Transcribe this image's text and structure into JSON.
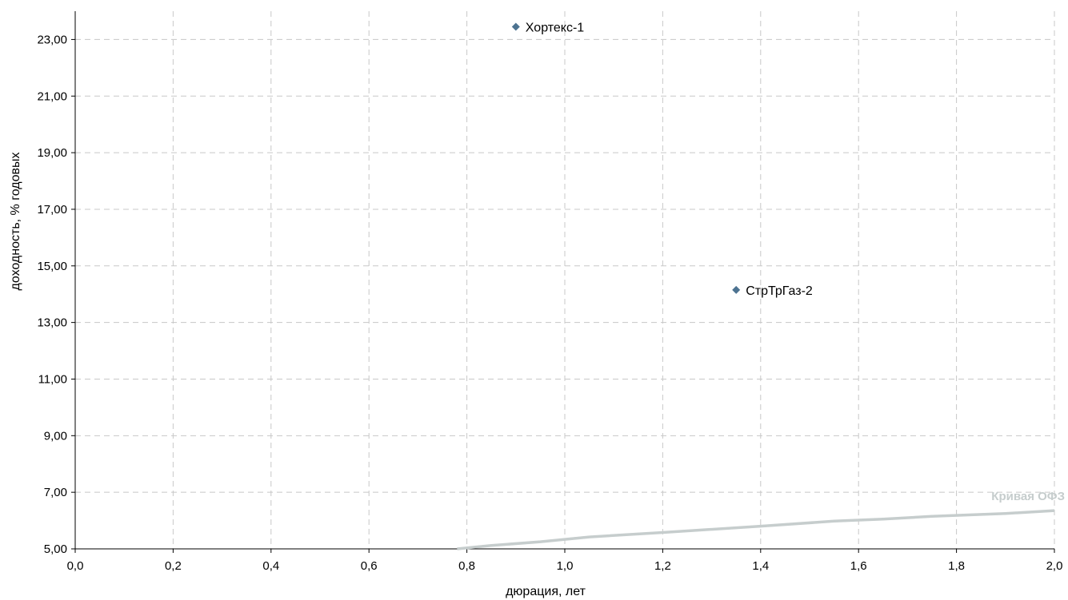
{
  "chart_data": {
    "type": "scatter",
    "title": "",
    "xlabel": "дюрация, лет",
    "ylabel": "доходность, % годовых",
    "xlim": [
      0,
      2
    ],
    "ylim": [
      5,
      24
    ],
    "x_ticks": [
      "0,0",
      "0,2",
      "0,4",
      "0,6",
      "0,8",
      "1,0",
      "1,2",
      "1,4",
      "1,6",
      "1,8",
      "2,0"
    ],
    "x_tick_values": [
      0,
      0.2,
      0.4,
      0.6,
      0.8,
      1.0,
      1.2,
      1.4,
      1.6,
      1.8,
      2.0
    ],
    "y_ticks": [
      "5,00",
      "7,00",
      "9,00",
      "11,00",
      "13,00",
      "15,00",
      "17,00",
      "19,00",
      "21,00",
      "23,00"
    ],
    "y_tick_values": [
      5,
      7,
      9,
      11,
      13,
      15,
      17,
      19,
      21,
      23
    ],
    "grid": true,
    "points": [
      {
        "name": "Хортекс-1",
        "x": 0.9,
        "y": 23.45
      },
      {
        "name": "СтрТрГаз-2",
        "x": 1.35,
        "y": 14.15
      }
    ],
    "curve": {
      "name": "Кривая ОФЗ",
      "x": [
        0.78,
        0.85,
        0.95,
        1.05,
        1.2,
        1.4,
        1.55,
        1.65,
        1.75,
        1.9,
        2.0
      ],
      "y": [
        5.0,
        5.12,
        5.25,
        5.42,
        5.58,
        5.8,
        5.98,
        6.05,
        6.15,
        6.25,
        6.35
      ]
    },
    "colors": {
      "point": "#4d7391",
      "curve": "#c6cdcd",
      "curve_label": "#c6cdcd",
      "grid": "#c8c8c8",
      "axis": "#000000"
    }
  }
}
